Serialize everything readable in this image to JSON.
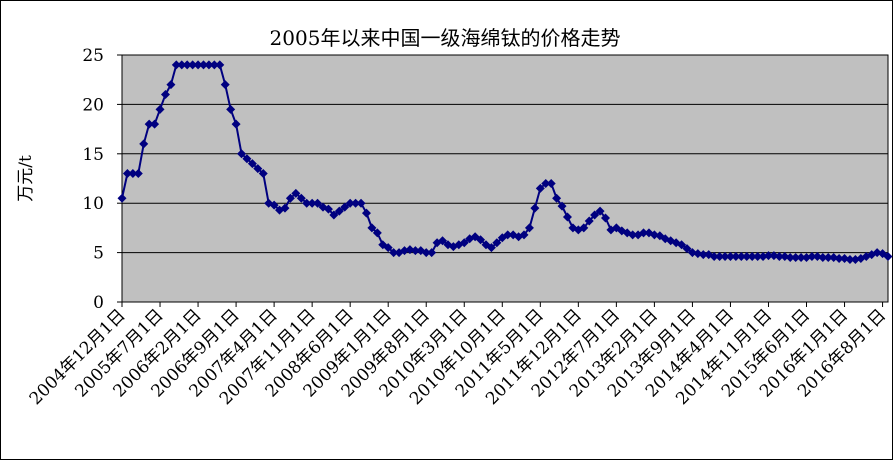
{
  "chart_data": {
    "type": "line",
    "title": "2005年以来中国一级海绵钛的价格走势",
    "ylabel": "万元/t",
    "xlabel": "",
    "ylim": [
      0,
      25
    ],
    "yticks": [
      "0",
      "5",
      "10",
      "15",
      "20",
      "25"
    ],
    "grid": true,
    "colors": {
      "plot_background": "#c0c0c0",
      "line": "#000080",
      "marker": "#000080",
      "grid": "#000000"
    },
    "x_tick_labels": [
      "2004年12月1日",
      "2005年7月1日",
      "2006年2月1日",
      "2006年9月1日",
      "2007年4月1日",
      "2007年11月1日",
      "2008年6月1日",
      "2009年1月1日",
      "2009年8月1日",
      "2010年3月1日",
      "2010年10月1日",
      "2011年5月1日",
      "2011年12月1日",
      "2012年7月1日",
      "2013年2月1日",
      "2013年9月1日",
      "2014年4月1日",
      "2014年11月1日",
      "2015年6月1日",
      "2016年1月1日",
      "2016年8月1日"
    ],
    "series": [
      {
        "name": "",
        "x": [
          "2004-12",
          "2005-01",
          "2005-02",
          "2005-03",
          "2005-04",
          "2005-05",
          "2005-06",
          "2005-07",
          "2005-08",
          "2005-09",
          "2005-10",
          "2005-11",
          "2005-12",
          "2006-01",
          "2006-02",
          "2006-03",
          "2006-04",
          "2006-05",
          "2006-06",
          "2006-07",
          "2006-08",
          "2006-09",
          "2006-10",
          "2006-11",
          "2006-12",
          "2007-01",
          "2007-02",
          "2007-03",
          "2007-04",
          "2007-05",
          "2007-06",
          "2007-07",
          "2007-08",
          "2007-09",
          "2007-10",
          "2007-11",
          "2007-12",
          "2008-01",
          "2008-02",
          "2008-03",
          "2008-04",
          "2008-05",
          "2008-06",
          "2008-07",
          "2008-08",
          "2008-09",
          "2008-10",
          "2008-11",
          "2008-12",
          "2009-01",
          "2009-02",
          "2009-03",
          "2009-04",
          "2009-05",
          "2009-06",
          "2009-07",
          "2009-08",
          "2009-09",
          "2009-10",
          "2009-11",
          "2009-12",
          "2010-01",
          "2010-02",
          "2010-03",
          "2010-04",
          "2010-05",
          "2010-06",
          "2010-07",
          "2010-08",
          "2010-09",
          "2010-10",
          "2010-11",
          "2010-12",
          "2011-01",
          "2011-02",
          "2011-03",
          "2011-04",
          "2011-05",
          "2011-06",
          "2011-07",
          "2011-08",
          "2011-09",
          "2011-10",
          "2011-11",
          "2011-12",
          "2012-01",
          "2012-02",
          "2012-03",
          "2012-04",
          "2012-05",
          "2012-06",
          "2012-07",
          "2012-08",
          "2012-09",
          "2012-10",
          "2012-11",
          "2012-12",
          "2013-01",
          "2013-02",
          "2013-03",
          "2013-04",
          "2013-05",
          "2013-06",
          "2013-07",
          "2013-08",
          "2013-09",
          "2013-10",
          "2013-11",
          "2013-12",
          "2014-01",
          "2014-02",
          "2014-03",
          "2014-04",
          "2014-05",
          "2014-06",
          "2014-07",
          "2014-08",
          "2014-09",
          "2014-10",
          "2014-11",
          "2014-12",
          "2015-01",
          "2015-02",
          "2015-03",
          "2015-04",
          "2015-05",
          "2015-06",
          "2015-07",
          "2015-08",
          "2015-09",
          "2015-10",
          "2015-11",
          "2015-12",
          "2016-01",
          "2016-02",
          "2016-03",
          "2016-04",
          "2016-05",
          "2016-06",
          "2016-07",
          "2016-08",
          "2016-09"
        ],
        "values": [
          10.5,
          13,
          13,
          13,
          16,
          18,
          18,
          19.5,
          21,
          22,
          24,
          24,
          24,
          24,
          24,
          24,
          24,
          24,
          24,
          22,
          19.5,
          18,
          15,
          14.5,
          14,
          13.5,
          13,
          10,
          9.8,
          9.3,
          9.5,
          10.5,
          11,
          10.5,
          10,
          10,
          10,
          9.6,
          9.4,
          8.8,
          9.2,
          9.6,
          10,
          10,
          10,
          9,
          7.5,
          7,
          5.8,
          5.5,
          5,
          5,
          5.2,
          5.3,
          5.2,
          5.2,
          5,
          5,
          6,
          6.2,
          5.8,
          5.6,
          5.8,
          6,
          6.4,
          6.6,
          6.3,
          5.8,
          5.5,
          6,
          6.5,
          6.8,
          6.8,
          6.6,
          6.8,
          7.5,
          9.5,
          11.5,
          12,
          12,
          10.5,
          9.7,
          8.6,
          7.5,
          7.3,
          7.5,
          8.2,
          8.8,
          9.2,
          8.5,
          7.3,
          7.5,
          7.2,
          7,
          6.8,
          6.8,
          7,
          7,
          6.8,
          6.7,
          6.4,
          6.2,
          6,
          5.8,
          5.4,
          5,
          4.9,
          4.8,
          4.8,
          4.6,
          4.6,
          4.6,
          4.6,
          4.6,
          4.6,
          4.6,
          4.6,
          4.6,
          4.6,
          4.7,
          4.7,
          4.6,
          4.6,
          4.5,
          4.5,
          4.5,
          4.5,
          4.6,
          4.6,
          4.5,
          4.5,
          4.5,
          4.4,
          4.4,
          4.3,
          4.3,
          4.4,
          4.6,
          4.8,
          5,
          4.9,
          4.6
        ]
      }
    ]
  }
}
